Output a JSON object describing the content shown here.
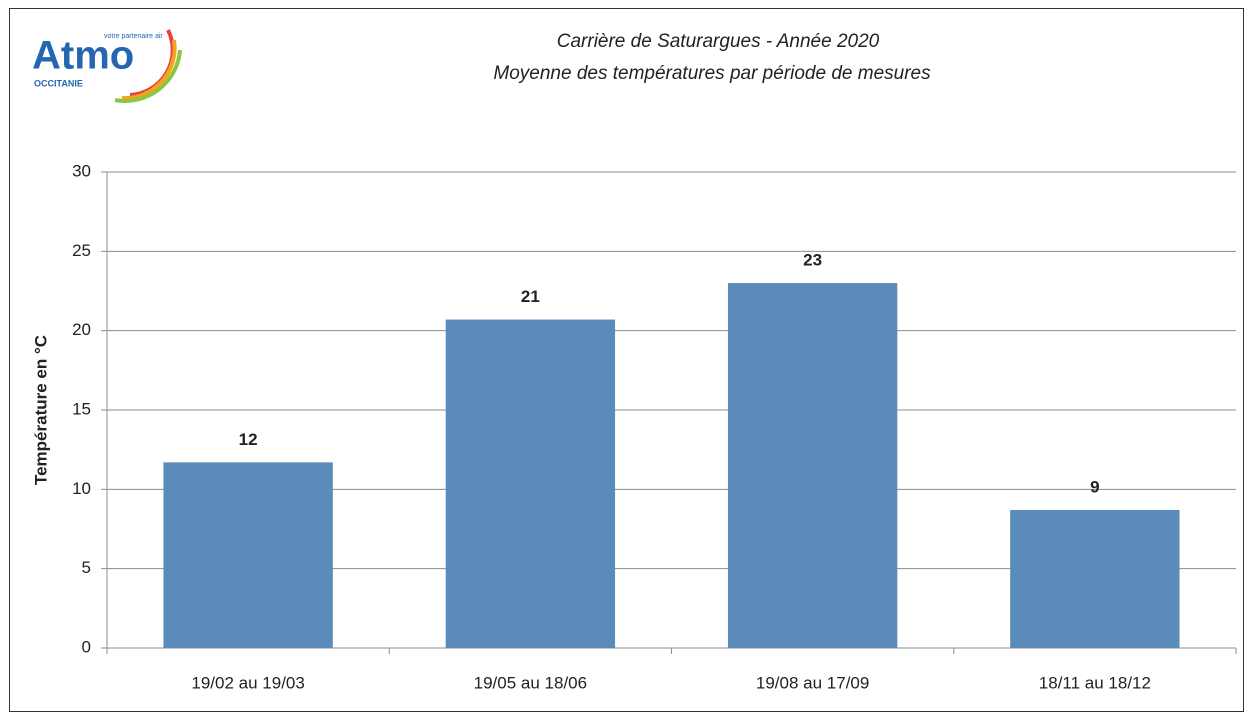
{
  "logo": {
    "name": "Atmo",
    "tagline": "votre partenaire air",
    "region": "OCCITANIE"
  },
  "chart_data": {
    "type": "bar",
    "title": "Carrière de Saturargues - Année 2020",
    "subtitle": "Moyenne des températures par période de mesures",
    "y_label": "Température en °C",
    "categories": [
      "19/02 au 19/03",
      "19/05 au 18/06",
      "19/08 au 17/09",
      "18/11 au 18/12"
    ],
    "values": [
      11.7,
      20.7,
      23.0,
      8.7
    ],
    "value_labels": [
      "12",
      "21",
      "23",
      "9"
    ],
    "color": "#5a8bba",
    "ylim": [
      0,
      30
    ],
    "yticks": [
      0,
      5,
      10,
      15,
      20,
      25,
      30
    ],
    "grid": true
  }
}
